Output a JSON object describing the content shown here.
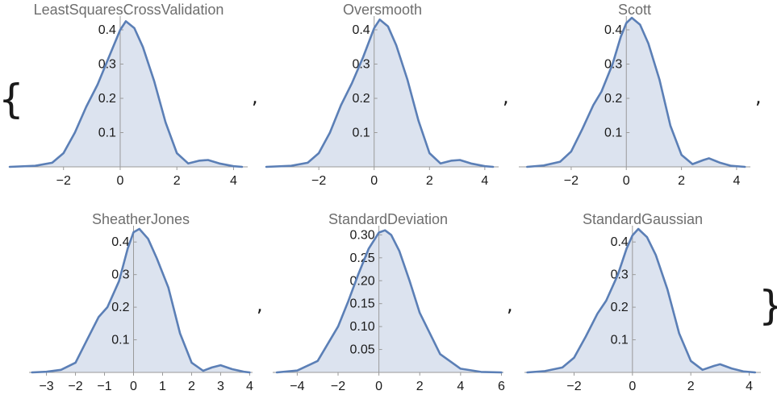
{
  "list_open_brace": "{",
  "list_close_brace": "}",
  "separator": ",",
  "colors": {
    "line": "#5b7fb6",
    "fill": "#dce3ef",
    "axis": "#9a9a9a",
    "title": "#6e6e6e"
  },
  "chart_data": [
    {
      "type": "area",
      "title": "LeastSquaresCrossValidation",
      "xlabel": "",
      "ylabel": "",
      "xlim": [
        -3.9,
        4.5
      ],
      "ylim": [
        0,
        0.44
      ],
      "xticks": [
        -2,
        0,
        2,
        4
      ],
      "xtick_labels": [
        "−2",
        "0",
        "2",
        "4"
      ],
      "yticks": [
        0.1,
        0.2,
        0.3,
        0.4
      ],
      "ytick_labels": [
        "0.1",
        "0.2",
        "0.3",
        "0.4"
      ],
      "grid": false,
      "x": [
        -3.9,
        -3.0,
        -2.4,
        -2.0,
        -1.6,
        -1.2,
        -0.8,
        -0.4,
        0.0,
        0.2,
        0.5,
        0.8,
        1.2,
        1.6,
        2.0,
        2.4,
        2.8,
        3.1,
        3.5,
        4.0,
        4.3
      ],
      "y": [
        0.0,
        0.003,
        0.012,
        0.04,
        0.1,
        0.175,
        0.24,
        0.32,
        0.4,
        0.425,
        0.405,
        0.35,
        0.25,
        0.13,
        0.04,
        0.01,
        0.018,
        0.02,
        0.01,
        0.002,
        0.0
      ]
    },
    {
      "type": "area",
      "title": "Oversmooth",
      "xlabel": "",
      "ylabel": "",
      "xlim": [
        -3.9,
        4.5
      ],
      "ylim": [
        0,
        0.44
      ],
      "xticks": [
        -2,
        0,
        2,
        4
      ],
      "xtick_labels": [
        "−2",
        "0",
        "2",
        "4"
      ],
      "yticks": [
        0.1,
        0.2,
        0.3,
        0.4
      ],
      "ytick_labels": [
        "0.1",
        "0.2",
        "0.3",
        "0.4"
      ],
      "grid": false,
      "x": [
        -3.9,
        -3.0,
        -2.4,
        -2.0,
        -1.6,
        -1.2,
        -0.8,
        -0.4,
        0.0,
        0.2,
        0.5,
        0.8,
        1.2,
        1.6,
        2.0,
        2.4,
        2.8,
        3.1,
        3.5,
        4.0,
        4.3
      ],
      "y": [
        0.0,
        0.003,
        0.012,
        0.04,
        0.1,
        0.18,
        0.245,
        0.32,
        0.405,
        0.43,
        0.41,
        0.355,
        0.255,
        0.135,
        0.04,
        0.01,
        0.018,
        0.02,
        0.01,
        0.002,
        0.0
      ]
    },
    {
      "type": "area",
      "title": "Scott",
      "xlabel": "",
      "ylabel": "",
      "xlim": [
        -3.9,
        4.5
      ],
      "ylim": [
        0,
        0.44
      ],
      "xticks": [
        -2,
        0,
        2,
        4
      ],
      "xtick_labels": [
        "−2",
        "0",
        "2",
        "4"
      ],
      "yticks": [
        0.1,
        0.2,
        0.3,
        0.4
      ],
      "ytick_labels": [
        "0.1",
        "0.2",
        "0.3",
        "0.4"
      ],
      "grid": false,
      "x": [
        -3.6,
        -3.0,
        -2.4,
        -2.0,
        -1.6,
        -1.2,
        -0.9,
        -0.5,
        -0.2,
        0.0,
        0.2,
        0.5,
        0.8,
        1.2,
        1.6,
        2.0,
        2.4,
        2.8,
        3.0,
        3.4,
        3.8,
        4.3
      ],
      "y": [
        0.0,
        0.004,
        0.015,
        0.045,
        0.11,
        0.18,
        0.22,
        0.3,
        0.38,
        0.42,
        0.435,
        0.415,
        0.36,
        0.255,
        0.12,
        0.035,
        0.008,
        0.02,
        0.025,
        0.012,
        0.003,
        0.0
      ]
    },
    {
      "type": "area",
      "title": "SheatherJones",
      "xlabel": "",
      "ylabel": "",
      "xlim": [
        -3.6,
        4.1
      ],
      "ylim": [
        0,
        0.45
      ],
      "xticks": [
        -3,
        -2,
        -1,
        0,
        1,
        2,
        3,
        4
      ],
      "xtick_labels": [
        "−3",
        "−2",
        "−1",
        "0",
        "1",
        "2",
        "3",
        "4"
      ],
      "yticks": [
        0.1,
        0.2,
        0.3,
        0.4
      ],
      "ytick_labels": [
        "0.1",
        "0.2",
        "0.3",
        "0.4"
      ],
      "grid": false,
      "x": [
        -3.5,
        -3.0,
        -2.5,
        -2.0,
        -1.6,
        -1.2,
        -0.9,
        -0.5,
        -0.2,
        0.0,
        0.2,
        0.5,
        0.8,
        1.2,
        1.6,
        2.0,
        2.4,
        2.7,
        3.0,
        3.4,
        3.8,
        4.0
      ],
      "y": [
        0.0,
        0.002,
        0.008,
        0.03,
        0.1,
        0.17,
        0.2,
        0.28,
        0.38,
        0.43,
        0.44,
        0.41,
        0.35,
        0.26,
        0.12,
        0.03,
        0.005,
        0.015,
        0.022,
        0.01,
        0.002,
        0.0
      ]
    },
    {
      "type": "area",
      "title": "StandardDeviation",
      "xlabel": "",
      "ylabel": "",
      "xlim": [
        -5.2,
        6.1
      ],
      "ylim": [
        0,
        0.32
      ],
      "xticks": [
        -4,
        -2,
        0,
        2,
        4,
        6
      ],
      "xtick_labels": [
        "−4",
        "−2",
        "0",
        "2",
        "4",
        "6"
      ],
      "yticks": [
        0.05,
        0.1,
        0.15,
        0.2,
        0.25,
        0.3
      ],
      "ytick_labels": [
        "0.05",
        "0.10",
        "0.15",
        "0.20",
        "0.25",
        "0.30"
      ],
      "grid": false,
      "x": [
        -5.0,
        -4.0,
        -3.0,
        -2.0,
        -1.5,
        -1.0,
        -0.5,
        0.0,
        0.3,
        0.6,
        1.0,
        1.5,
        2.0,
        3.0,
        4.0,
        5.0,
        6.0
      ],
      "y": [
        0.0,
        0.004,
        0.025,
        0.1,
        0.155,
        0.215,
        0.27,
        0.305,
        0.31,
        0.3,
        0.265,
        0.2,
        0.13,
        0.04,
        0.008,
        0.001,
        0.0
      ]
    },
    {
      "type": "area",
      "title": "StandardGaussian",
      "xlabel": "",
      "ylabel": "",
      "xlim": [
        -3.7,
        4.4
      ],
      "ylim": [
        0,
        0.45
      ],
      "xticks": [
        -2,
        0,
        2,
        4
      ],
      "xtick_labels": [
        "−2",
        "0",
        "2",
        "4"
      ],
      "yticks": [
        0.1,
        0.2,
        0.3,
        0.4
      ],
      "ytick_labels": [
        "0.1",
        "0.2",
        "0.3",
        "0.4"
      ],
      "grid": false,
      "x": [
        -3.6,
        -3.0,
        -2.4,
        -2.0,
        -1.6,
        -1.2,
        -0.9,
        -0.5,
        -0.2,
        0.0,
        0.2,
        0.5,
        0.8,
        1.2,
        1.6,
        2.0,
        2.4,
        2.8,
        3.0,
        3.4,
        3.8,
        4.2
      ],
      "y": [
        0.0,
        0.004,
        0.015,
        0.045,
        0.11,
        0.18,
        0.22,
        0.3,
        0.38,
        0.42,
        0.44,
        0.415,
        0.36,
        0.255,
        0.12,
        0.035,
        0.008,
        0.02,
        0.025,
        0.012,
        0.003,
        0.0
      ]
    }
  ]
}
